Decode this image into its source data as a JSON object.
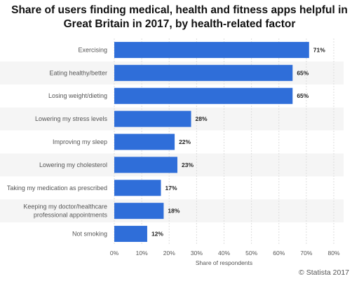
{
  "chart_data": {
    "type": "bar",
    "orientation": "horizontal",
    "title": "Share of users finding medical, health and fitness apps helpful in Great Britain in 2017, by health-related factor",
    "categories": [
      "Exercising",
      "Eating healthy/better",
      "Losing weight/dieting",
      "Lowering my stress levels",
      "Improving my sleep",
      "Lowering my cholesterol",
      "Taking my medication as prescribed",
      "Keeping my doctor/healthcare professional appointments",
      "Not smoking"
    ],
    "values": [
      71,
      65,
      65,
      28,
      22,
      23,
      17,
      18,
      12
    ],
    "value_labels": [
      "71%",
      "65%",
      "65%",
      "28%",
      "22%",
      "23%",
      "17%",
      "18%",
      "12%"
    ],
    "xlabel": "Share of respondents",
    "ylabel": "",
    "xlim": [
      0,
      80
    ],
    "ticks": [
      0,
      10,
      20,
      30,
      40,
      50,
      60,
      70,
      80
    ],
    "tick_labels": [
      "0%",
      "10%",
      "20%",
      "30%",
      "40%",
      "50%",
      "60%",
      "70%",
      "80%"
    ],
    "grid": true,
    "legend": "none",
    "bar_color": "#2f6ed9",
    "stripe_color": "#f5f5f5"
  },
  "credit": "© Statista 2017"
}
